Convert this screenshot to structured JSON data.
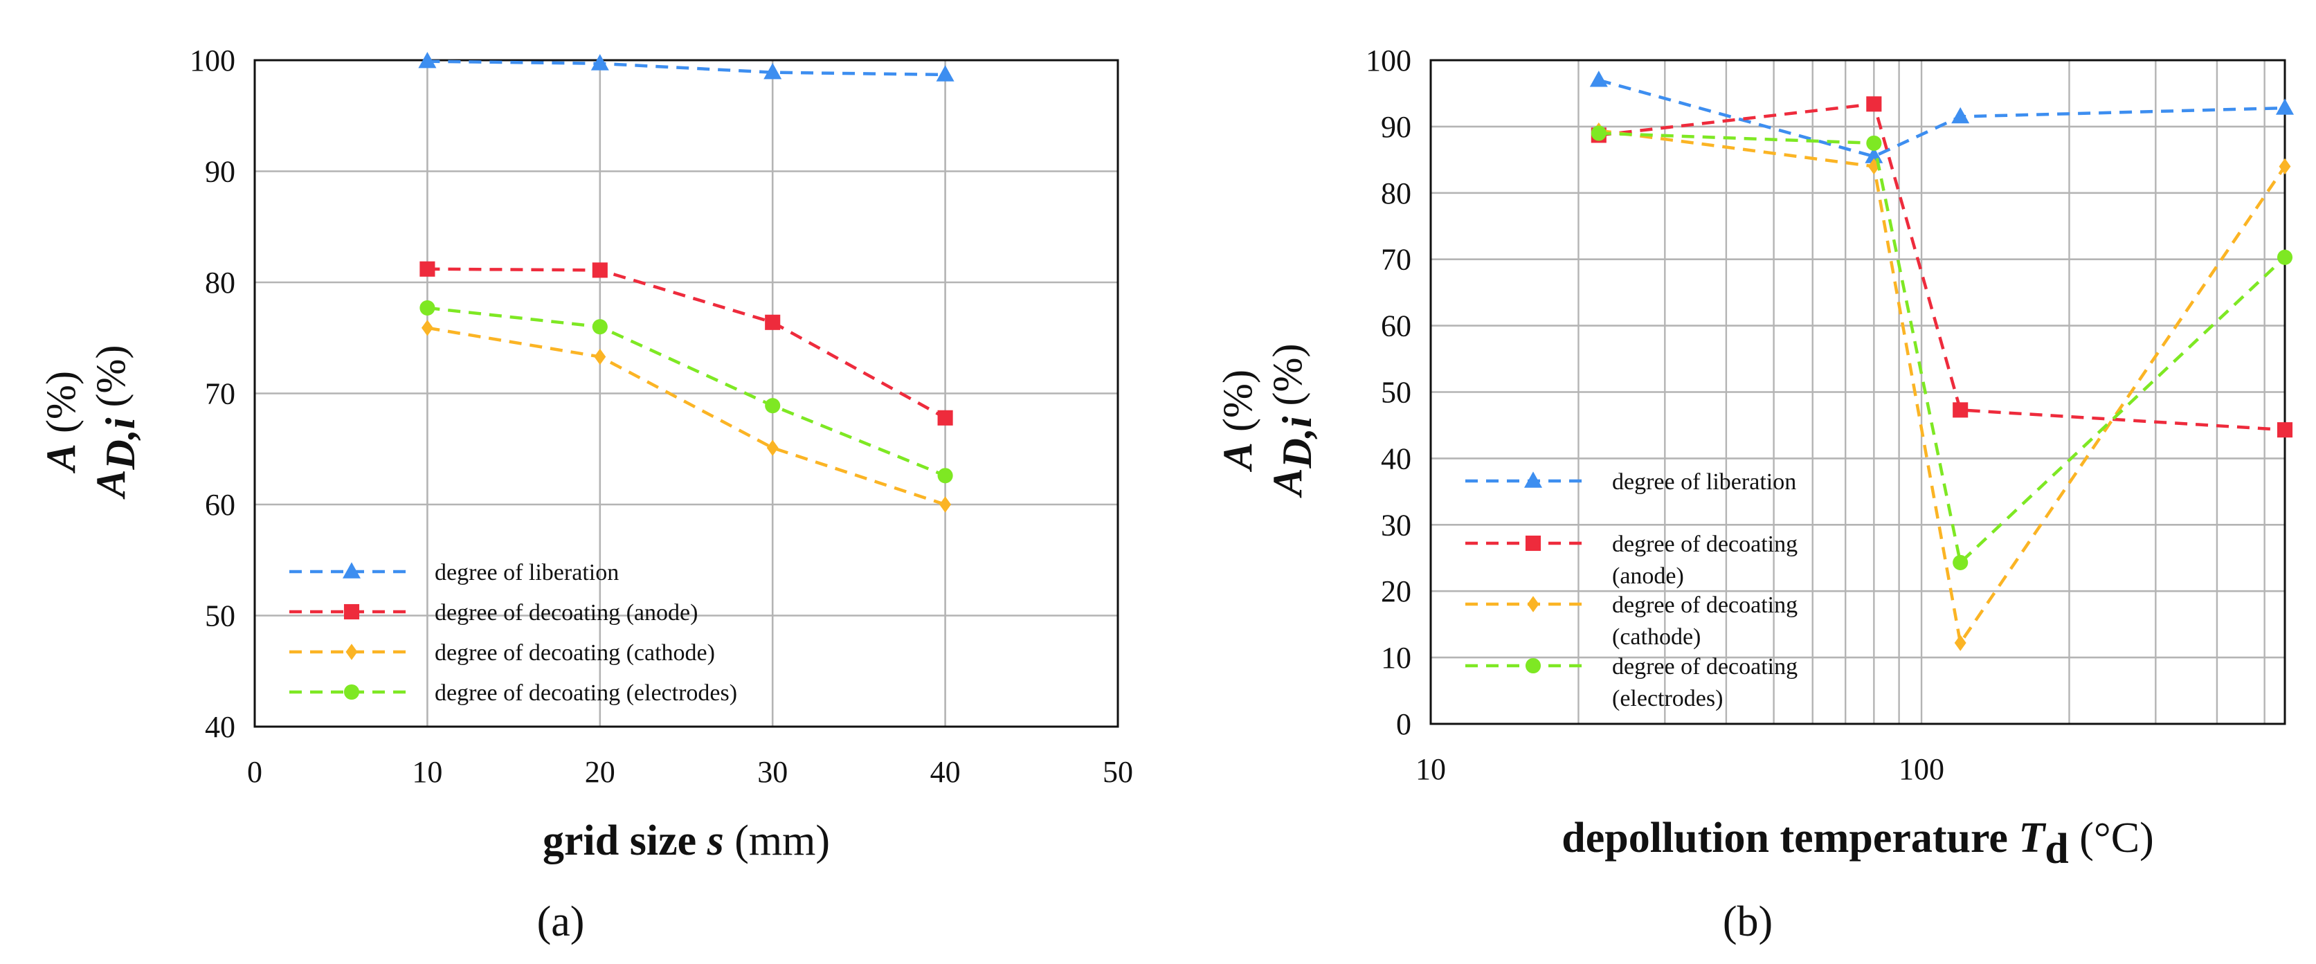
{
  "chart_data": [
    {
      "type": "line",
      "panel_label": "(a)",
      "xaxis": {
        "label_prefix": "grid size ",
        "label_var": "s",
        "label_unit": " (mm)",
        "range": [
          0,
          50
        ],
        "ticks": [
          "0",
          "10",
          "20",
          "30",
          "40",
          "50"
        ],
        "scale": "linear"
      },
      "yaxis": {
        "label_line1_var": "A",
        "label_line1_unit": " (%)",
        "label_line2_var": "A",
        "label_line2_sub": "D,i",
        "label_line2_unit": " (%)",
        "range": [
          40,
          100
        ],
        "ticks": [
          "40",
          "50",
          "60",
          "70",
          "80",
          "90",
          "100"
        ]
      },
      "grid": true,
      "legend_position": "bottom-left",
      "x": [
        10,
        20,
        30,
        40
      ],
      "series": [
        {
          "name": "degree of liberation",
          "color": "#3d8ef0",
          "marker": "triangle",
          "values": [
            99.9,
            99.7,
            98.9,
            98.7
          ]
        },
        {
          "name": "degree of decoating (anode)",
          "color": "#ee2b3c",
          "marker": "square",
          "values": [
            81.2,
            81.1,
            76.4,
            67.8
          ]
        },
        {
          "name": "degree of decoating (cathode)",
          "color": "#fbb424",
          "marker": "diamond",
          "values": [
            75.9,
            73.3,
            65.1,
            60.0
          ]
        },
        {
          "name": "degree of decoating (electrodes)",
          "color": "#7ee823",
          "marker": "circle",
          "values": [
            77.7,
            76.0,
            68.9,
            62.6
          ]
        }
      ]
    },
    {
      "type": "line",
      "panel_label": "(b)",
      "xaxis": {
        "label_prefix": "depollution temperature ",
        "label_var": "T",
        "label_sub": "d",
        "label_unit": " (°C)",
        "range": [
          10,
          550
        ],
        "ticks": [
          "10",
          "100"
        ],
        "scale": "log"
      },
      "yaxis": {
        "label_line1_var": "A",
        "label_line1_unit": " (%)",
        "label_line2_var": "A",
        "label_line2_sub": "D,i",
        "label_line2_unit": " (%)",
        "range": [
          0,
          100
        ],
        "ticks": [
          "0",
          "10",
          "20",
          "30",
          "40",
          "50",
          "60",
          "70",
          "80",
          "90",
          "100"
        ]
      },
      "grid": true,
      "legend_position": "left",
      "x": [
        22,
        80,
        120,
        550
      ],
      "series": [
        {
          "name_lines": [
            "degree of liberation"
          ],
          "color": "#3d8ef0",
          "marker": "triangle",
          "values": [
            97.0,
            85.5,
            91.5,
            92.8
          ]
        },
        {
          "name_lines": [
            "degree of decoating",
            "(anode)"
          ],
          "color": "#ee2b3c",
          "marker": "square",
          "values": [
            88.7,
            93.4,
            47.3,
            44.3
          ]
        },
        {
          "name_lines": [
            "degree of decoating",
            "(cathode)"
          ],
          "color": "#fbb424",
          "marker": "diamond",
          "values": [
            89.4,
            84.0,
            12.2,
            84.0
          ]
        },
        {
          "name_lines": [
            "degree of decoating",
            "(electrodes)"
          ],
          "color": "#7ee823",
          "marker": "circle",
          "values": [
            89.0,
            87.5,
            24.3,
            70.3
          ]
        }
      ]
    }
  ]
}
